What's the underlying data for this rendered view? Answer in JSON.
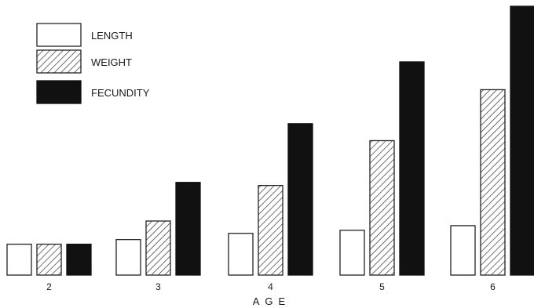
{
  "chart_data": {
    "type": "bar",
    "title": "",
    "xlabel": "AGE",
    "ylabel": "",
    "categories": [
      "2",
      "3",
      "4",
      "5",
      "6"
    ],
    "series": [
      {
        "name": "LENGTH",
        "pattern": "open",
        "values": [
          1.0,
          1.15,
          1.35,
          1.45,
          1.6
        ]
      },
      {
        "name": "WEIGHT",
        "pattern": "hatched",
        "values": [
          1.0,
          1.75,
          2.9,
          4.35,
          6.0
        ]
      },
      {
        "name": "FECUNDITY",
        "pattern": "solid",
        "values": [
          1.0,
          3.0,
          4.9,
          6.9,
          8.7
        ]
      }
    ],
    "ylim": [
      0,
      8.7
    ],
    "grid": false,
    "legend_position": "top-left",
    "colors": {
      "solid": "#111111",
      "outline": "#222222",
      "open_fill": "#ffffff"
    }
  }
}
